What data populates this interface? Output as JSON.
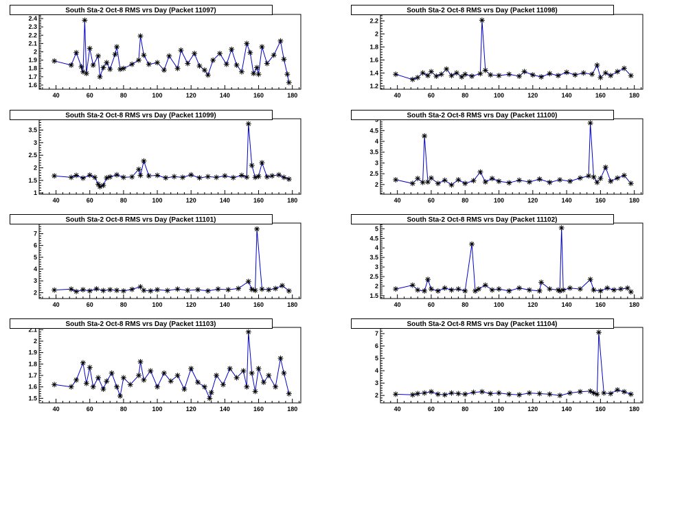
{
  "chart_data": [
    {
      "type": "line",
      "title": "South Sta-2 Oct-8 RMS vrs Day (Packet 11097)",
      "xlim": [
        30,
        185
      ],
      "ylim": [
        1.55,
        2.45
      ],
      "xticks": [
        40,
        60,
        80,
        100,
        120,
        140,
        160,
        180
      ],
      "yticks": [
        1.6,
        1.7,
        1.8,
        1.9,
        2,
        2.1,
        2.2,
        2.3,
        2.4
      ],
      "marker": "asterisk",
      "line_color": "#0000cc",
      "marker_color": "#000000",
      "series": [
        {
          "x": [
            39,
            49,
            52,
            55,
            56,
            57,
            58,
            60,
            62,
            65,
            66,
            68,
            70,
            72,
            75,
            76,
            78,
            80,
            85,
            89,
            90,
            92,
            95,
            100,
            104,
            107,
            112,
            114,
            118,
            122,
            125,
            128,
            130,
            133,
            137,
            141,
            144,
            147,
            150,
            153,
            155,
            157,
            159,
            160,
            162,
            165,
            169,
            173,
            175,
            177,
            178
          ],
          "y": [
            1.89,
            1.84,
            1.99,
            1.82,
            1.76,
            2.38,
            1.74,
            2.04,
            1.84,
            1.95,
            1.7,
            1.81,
            1.87,
            1.79,
            1.97,
            2.06,
            1.79,
            1.8,
            1.85,
            1.9,
            2.19,
            1.96,
            1.85,
            1.87,
            1.78,
            1.95,
            1.8,
            2.02,
            1.86,
            1.98,
            1.83,
            1.78,
            1.72,
            1.9,
            1.98,
            1.85,
            2.03,
            1.84,
            1.76,
            2.1,
            1.99,
            1.74,
            1.81,
            1.73,
            2.06,
            1.86,
            1.96,
            2.13,
            1.91,
            1.73,
            1.63
          ]
        }
      ]
    },
    {
      "type": "line",
      "title": "South Sta-2 Oct-8 RMS vrs Day (Packet 11098)",
      "xlim": [
        30,
        185
      ],
      "ylim": [
        1.15,
        2.3
      ],
      "xticks": [
        40,
        60,
        80,
        100,
        120,
        140,
        160,
        180
      ],
      "yticks": [
        1.2,
        1.4,
        1.6,
        1.8,
        2,
        2.2
      ],
      "marker": "asterisk",
      "line_color": "#0000cc",
      "marker_color": "#000000",
      "series": [
        {
          "x": [
            39,
            49,
            52,
            55,
            58,
            60,
            63,
            66,
            69,
            72,
            75,
            78,
            80,
            84,
            89,
            90,
            92,
            95,
            100,
            106,
            112,
            115,
            120,
            125,
            130,
            135,
            140,
            145,
            150,
            155,
            158,
            160,
            163,
            166,
            170,
            174,
            178
          ],
          "y": [
            1.38,
            1.3,
            1.33,
            1.4,
            1.36,
            1.42,
            1.35,
            1.38,
            1.46,
            1.36,
            1.4,
            1.34,
            1.38,
            1.35,
            1.39,
            2.21,
            1.44,
            1.37,
            1.36,
            1.38,
            1.35,
            1.42,
            1.37,
            1.34,
            1.39,
            1.36,
            1.41,
            1.37,
            1.4,
            1.38,
            1.52,
            1.33,
            1.4,
            1.36,
            1.42,
            1.47,
            1.36
          ]
        }
      ]
    },
    {
      "type": "line",
      "title": "South Sta-2 Oct-8 RMS vrs Day (Packet 11099)",
      "xlim": [
        30,
        185
      ],
      "ylim": [
        0.95,
        3.95
      ],
      "xticks": [
        40,
        60,
        80,
        100,
        120,
        140,
        160,
        180
      ],
      "yticks": [
        1,
        1.5,
        2,
        2.5,
        3,
        3.5
      ],
      "marker": "asterisk",
      "line_color": "#0000cc",
      "marker_color": "#000000",
      "series": [
        {
          "x": [
            39,
            49,
            52,
            56,
            60,
            63,
            65,
            66,
            68,
            70,
            72,
            76,
            80,
            85,
            89,
            90,
            92,
            95,
            100,
            105,
            110,
            115,
            120,
            125,
            130,
            135,
            140,
            145,
            150,
            153,
            154,
            156,
            158,
            160,
            162,
            165,
            168,
            172,
            175,
            178
          ],
          "y": [
            1.68,
            1.62,
            1.7,
            1.59,
            1.71,
            1.62,
            1.35,
            1.25,
            1.3,
            1.6,
            1.64,
            1.72,
            1.62,
            1.64,
            1.94,
            1.7,
            2.27,
            1.68,
            1.7,
            1.6,
            1.65,
            1.62,
            1.72,
            1.6,
            1.65,
            1.62,
            1.68,
            1.61,
            1.7,
            1.63,
            3.75,
            2.1,
            1.62,
            1.66,
            2.2,
            1.64,
            1.68,
            1.72,
            1.62,
            1.55
          ]
        }
      ]
    },
    {
      "type": "line",
      "title": "South Sta-2 Oct-8 RMS vrs Day (Packet 11100)",
      "xlim": [
        30,
        185
      ],
      "ylim": [
        1.55,
        5.05
      ],
      "xticks": [
        40,
        60,
        80,
        100,
        120,
        140,
        160,
        180
      ],
      "yticks": [
        2,
        2.5,
        3,
        3.5,
        4,
        4.5,
        5
      ],
      "marker": "asterisk",
      "line_color": "#0000cc",
      "marker_color": "#000000",
      "series": [
        {
          "x": [
            39,
            49,
            52,
            55,
            56,
            58,
            60,
            64,
            68,
            72,
            76,
            80,
            85,
            89,
            92,
            96,
            100,
            106,
            112,
            118,
            124,
            130,
            136,
            142,
            148,
            153,
            154,
            156,
            158,
            160,
            163,
            166,
            170,
            174,
            178
          ],
          "y": [
            2.22,
            2.05,
            2.28,
            2.1,
            4.25,
            2.12,
            2.3,
            2.05,
            2.2,
            1.98,
            2.22,
            2.05,
            2.18,
            2.58,
            2.12,
            2.28,
            2.15,
            2.08,
            2.2,
            2.12,
            2.25,
            2.1,
            2.22,
            2.15,
            2.3,
            2.4,
            4.85,
            2.35,
            2.1,
            2.28,
            2.8,
            2.15,
            2.3,
            2.42,
            2.05
          ]
        }
      ]
    },
    {
      "type": "line",
      "title": "South Sta-2 Oct-8 RMS vrs Day (Packet 11101)",
      "xlim": [
        30,
        185
      ],
      "ylim": [
        1.5,
        7.9
      ],
      "xticks": [
        40,
        60,
        80,
        100,
        120,
        140,
        160,
        180
      ],
      "yticks": [
        2,
        3,
        4,
        5,
        6,
        7
      ],
      "marker": "asterisk",
      "line_color": "#0000cc",
      "marker_color": "#000000",
      "series": [
        {
          "x": [
            39,
            49,
            52,
            56,
            60,
            64,
            68,
            72,
            76,
            80,
            85,
            90,
            92,
            96,
            100,
            106,
            112,
            118,
            124,
            130,
            136,
            142,
            148,
            154,
            156,
            158,
            159,
            162,
            166,
            170,
            174,
            178
          ],
          "y": [
            2.22,
            2.3,
            2.1,
            2.25,
            2.15,
            2.32,
            2.18,
            2.25,
            2.2,
            2.15,
            2.28,
            2.5,
            2.2,
            2.15,
            2.25,
            2.18,
            2.3,
            2.2,
            2.25,
            2.15,
            2.3,
            2.25,
            2.35,
            2.95,
            2.28,
            2.2,
            7.4,
            2.3,
            2.25,
            2.35,
            2.6,
            2.15
          ]
        }
      ]
    },
    {
      "type": "line",
      "title": "South Sta-2 Oct-8 RMS vrs Day (Packet 11102)",
      "xlim": [
        30,
        185
      ],
      "ylim": [
        1.35,
        5.3
      ],
      "xticks": [
        40,
        60,
        80,
        100,
        120,
        140,
        160,
        180
      ],
      "yticks": [
        1.5,
        2,
        2.5,
        3,
        3.5,
        4,
        4.5,
        5
      ],
      "marker": "asterisk",
      "line_color": "#0000cc",
      "marker_color": "#000000",
      "series": [
        {
          "x": [
            39,
            49,
            52,
            56,
            58,
            60,
            64,
            68,
            72,
            76,
            80,
            84,
            86,
            88,
            92,
            96,
            100,
            106,
            112,
            118,
            124,
            125,
            130,
            135,
            136,
            137,
            138,
            142,
            148,
            154,
            156,
            160,
            164,
            168,
            172,
            176,
            178
          ],
          "y": [
            1.85,
            2.05,
            1.8,
            1.75,
            2.35,
            1.85,
            1.75,
            1.9,
            1.8,
            1.85,
            1.75,
            4.2,
            1.75,
            1.85,
            2.05,
            1.8,
            1.85,
            1.75,
            1.9,
            1.8,
            1.75,
            2.2,
            1.85,
            1.8,
            1.75,
            5.05,
            1.8,
            1.9,
            1.85,
            2.35,
            1.8,
            1.75,
            1.9,
            1.8,
            1.85,
            1.9,
            1.7
          ]
        }
      ]
    },
    {
      "type": "line",
      "title": "South Sta-2 Oct-8 RMS vrs Day (Packet 11103)",
      "xlim": [
        30,
        185
      ],
      "ylim": [
        1.46,
        2.12
      ],
      "xticks": [
        40,
        60,
        80,
        100,
        120,
        140,
        160,
        180
      ],
      "yticks": [
        1.5,
        1.6,
        1.7,
        1.8,
        1.9,
        2,
        2.1
      ],
      "marker": "asterisk",
      "line_color": "#0000cc",
      "marker_color": "#000000",
      "series": [
        {
          "x": [
            39,
            49,
            52,
            56,
            58,
            60,
            62,
            65,
            68,
            70,
            73,
            76,
            78,
            80,
            84,
            89,
            90,
            92,
            96,
            100,
            104,
            108,
            112,
            116,
            120,
            124,
            128,
            131,
            132,
            135,
            139,
            143,
            147,
            151,
            153,
            154,
            156,
            158,
            160,
            163,
            166,
            170,
            173,
            175,
            178
          ],
          "y": [
            1.62,
            1.6,
            1.66,
            1.81,
            1.63,
            1.77,
            1.6,
            1.68,
            1.58,
            1.65,
            1.72,
            1.6,
            1.52,
            1.68,
            1.62,
            1.7,
            1.82,
            1.66,
            1.74,
            1.6,
            1.72,
            1.65,
            1.7,
            1.58,
            1.76,
            1.64,
            1.6,
            1.5,
            1.55,
            1.7,
            1.62,
            1.76,
            1.68,
            1.74,
            1.6,
            2.08,
            1.72,
            1.56,
            1.76,
            1.64,
            1.7,
            1.6,
            1.85,
            1.72,
            1.54
          ]
        }
      ]
    },
    {
      "type": "line",
      "title": "South Sta-2 Oct-8 RMS vrs Day (Packet 11104)",
      "xlim": [
        30,
        185
      ],
      "ylim": [
        1.4,
        7.5
      ],
      "xticks": [
        40,
        60,
        80,
        100,
        120,
        140,
        160,
        180
      ],
      "yticks": [
        2,
        3,
        4,
        5,
        6,
        7
      ],
      "marker": "asterisk",
      "line_color": "#0000cc",
      "marker_color": "#000000",
      "series": [
        {
          "x": [
            39,
            49,
            52,
            56,
            60,
            64,
            68,
            72,
            76,
            80,
            85,
            90,
            95,
            100,
            106,
            112,
            118,
            124,
            130,
            136,
            142,
            148,
            154,
            156,
            158,
            159,
            162,
            166,
            170,
            174,
            178
          ],
          "y": [
            2.1,
            2.05,
            2.15,
            2.2,
            2.3,
            2.1,
            2.05,
            2.2,
            2.15,
            2.1,
            2.25,
            2.3,
            2.15,
            2.2,
            2.1,
            2.05,
            2.2,
            2.15,
            2.1,
            2.0,
            2.2,
            2.3,
            2.35,
            2.2,
            2.1,
            7.1,
            2.2,
            2.15,
            2.45,
            2.3,
            2.1
          ]
        }
      ]
    }
  ]
}
